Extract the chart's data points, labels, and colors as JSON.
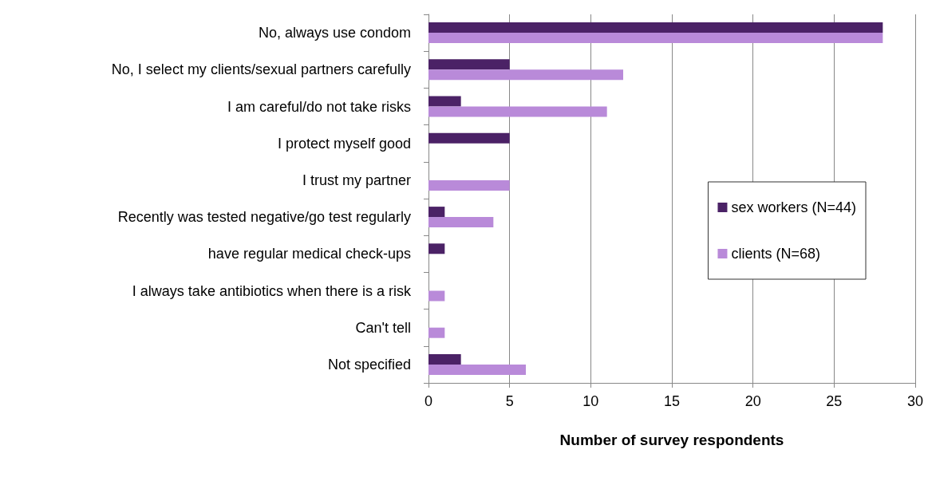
{
  "chart_data": {
    "type": "bar",
    "orientation": "horizontal",
    "xlabel": "Number of survey respondents",
    "categories": [
      "No, always use condom",
      "No, I select my clients/sexual partners carefully",
      "I am careful/do not take risks",
      "I protect myself good",
      "I trust my partner",
      "Recently was tested negative/go test regularly",
      "have regular medical check-ups",
      "I always take antibiotics when there is a risk",
      "Can't tell",
      "Not specified"
    ],
    "series": [
      {
        "name": "sex workers (N=44)",
        "color": "#4b2266",
        "values": [
          28,
          5,
          2,
          5,
          0,
          1,
          1,
          0,
          0,
          2
        ]
      },
      {
        "name": "clients (N=68)",
        "color": "#b98ad9",
        "values": [
          28,
          12,
          11,
          0,
          5,
          4,
          0,
          1,
          1,
          6
        ]
      }
    ],
    "xlim": [
      0,
      30
    ],
    "xticks": [
      0,
      5,
      10,
      15,
      20,
      25,
      30
    ],
    "grid": "x",
    "legend": "right"
  }
}
